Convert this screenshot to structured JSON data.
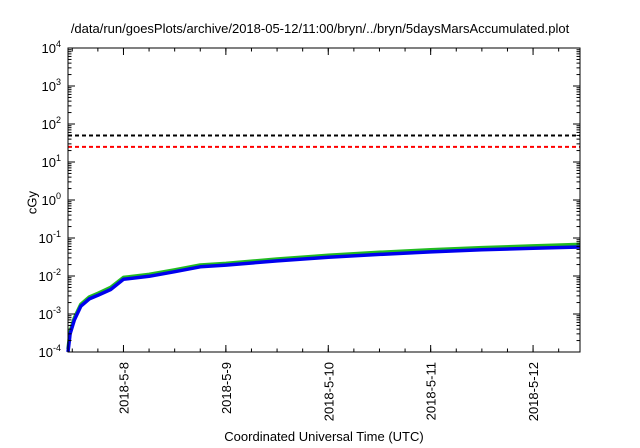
{
  "title": "/data/run/goesPlots/archive/2018-05-12/11:00/bryn/../bryn/5daysMarsAccumulated.plot",
  "chart_data": {
    "type": "line",
    "title": "/data/run/goesPlots/archive/2018-05-12/11:00/bryn/../bryn/5daysMarsAccumulated.plot",
    "xlabel": "Coordinated Universal Time (UTC)",
    "ylabel": "cGy",
    "x_scale": "time",
    "y_scale": "log",
    "xlim": [
      "2018-05-07 11:00",
      "2018-05-12 11:00"
    ],
    "ylim": [
      0.0001,
      10000
    ],
    "x_tick_labels": [
      "2018-5-8",
      "2018-5-9",
      "2018-5-10",
      "2018-5-11",
      "2018-5-12"
    ],
    "x_tick_values": [
      "2018-05-08 00:00",
      "2018-05-09 00:00",
      "2018-05-10 00:00",
      "2018-05-11 00:00",
      "2018-05-12 00:00"
    ],
    "y_tick_labels": [
      {
        "base": "10",
        "exp": "-4"
      },
      {
        "base": "10",
        "exp": "-3"
      },
      {
        "base": "10",
        "exp": "-2"
      },
      {
        "base": "10",
        "exp": "-1"
      },
      {
        "base": "10",
        "exp": "0"
      },
      {
        "base": "10",
        "exp": "1"
      },
      {
        "base": "10",
        "exp": "2"
      },
      {
        "base": "10",
        "exp": "3"
      },
      {
        "base": "10",
        "exp": "4"
      }
    ],
    "y_tick_values": [
      0.0001,
      0.001,
      0.01,
      0.1,
      1,
      10,
      100,
      1000,
      10000
    ],
    "grid": false,
    "reference_lines": [
      {
        "y": 50,
        "color": "#000000",
        "style": "dashed"
      },
      {
        "y": 25,
        "color": "#ff0000",
        "style": "dashed"
      }
    ],
    "series": [
      {
        "color": "#22bb22",
        "x": [
          "2018-05-07 11:00",
          "2018-05-07 11:30",
          "2018-05-07 12:30",
          "2018-05-07 14:00",
          "2018-05-07 16:00",
          "2018-05-07 18:00",
          "2018-05-07 21:00",
          "2018-05-08 00:00",
          "2018-05-08 06:00",
          "2018-05-08 12:00",
          "2018-05-08 18:00",
          "2018-05-09 00:00",
          "2018-05-09 12:00",
          "2018-05-10 00:00",
          "2018-05-10 12:00",
          "2018-05-11 00:00",
          "2018-05-11 12:00",
          "2018-05-12 00:00",
          "2018-05-12 11:00"
        ],
        "y": [
          0.00012,
          0.00035,
          0.0008,
          0.0018,
          0.0028,
          0.0035,
          0.005,
          0.0092,
          0.011,
          0.0145,
          0.0195,
          0.0215,
          0.028,
          0.035,
          0.042,
          0.049,
          0.056,
          0.062,
          0.068
        ]
      },
      {
        "color": "#0000ee",
        "x": [
          "2018-05-07 11:00",
          "2018-05-07 11:30",
          "2018-05-07 12:30",
          "2018-05-07 14:00",
          "2018-05-07 16:00",
          "2018-05-07 18:00",
          "2018-05-07 21:00",
          "2018-05-08 00:00",
          "2018-05-08 06:00",
          "2018-05-08 12:00",
          "2018-05-08 18:00",
          "2018-05-09 00:00",
          "2018-05-09 12:00",
          "2018-05-10 00:00",
          "2018-05-10 12:00",
          "2018-05-11 00:00",
          "2018-05-11 12:00",
          "2018-05-12 00:00",
          "2018-05-12 11:00"
        ],
        "y": [
          0.0001,
          0.0003,
          0.0007,
          0.0016,
          0.0025,
          0.0031,
          0.0044,
          0.0082,
          0.0098,
          0.013,
          0.0175,
          0.0193,
          0.025,
          0.031,
          0.037,
          0.043,
          0.049,
          0.054,
          0.058
        ]
      }
    ]
  }
}
